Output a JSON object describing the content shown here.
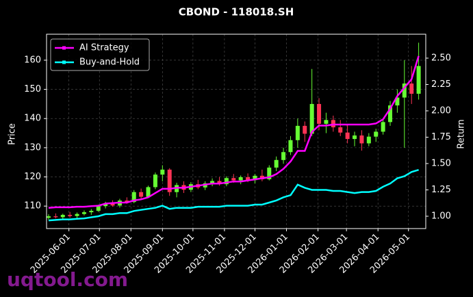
{
  "chart_data": {
    "type": "candlestick",
    "title": "CBOND - 118018.SH",
    "ylabel": "Price",
    "y2label": "Return",
    "x": [
      "2025-05-12",
      "2025-05-19",
      "2025-05-26",
      "2025-06-02",
      "2025-06-09",
      "2025-06-16",
      "2025-06-23",
      "2025-06-30",
      "2025-07-07",
      "2025-07-14",
      "2025-07-21",
      "2025-07-28",
      "2025-08-04",
      "2025-08-11",
      "2025-08-18",
      "2025-08-25",
      "2025-09-01",
      "2025-09-08",
      "2025-09-15",
      "2025-09-22",
      "2025-09-29",
      "2025-10-06",
      "2025-10-13",
      "2025-10-20",
      "2025-10-27",
      "2025-11-03",
      "2025-11-10",
      "2025-11-17",
      "2025-11-24",
      "2025-12-01",
      "2025-12-08",
      "2025-12-15",
      "2025-12-22",
      "2025-12-29",
      "2026-01-05",
      "2026-01-12",
      "2026-01-19",
      "2026-01-26",
      "2026-02-02",
      "2026-02-09",
      "2026-02-16",
      "2026-02-23",
      "2026-03-02",
      "2026-03-09",
      "2026-03-16",
      "2026-03-23",
      "2026-03-30",
      "2026-04-06",
      "2026-04-13",
      "2026-04-20",
      "2026-04-27",
      "2026-05-04",
      "2026-05-11"
    ],
    "open": [
      106.0,
      106.5,
      106.2,
      107.0,
      106.6,
      107.3,
      107.9,
      108.4,
      110.0,
      110.8,
      110.2,
      111.9,
      111.4,
      114.8,
      113.2,
      116.5,
      120.8,
      122.5,
      114.8,
      117.2,
      115.6,
      117.5,
      116.4,
      117.8,
      118.6,
      117.5,
      119.6,
      118.8,
      119.9,
      118.9,
      120.4,
      119.2,
      123.2,
      125.8,
      128.5,
      132.6,
      137.5,
      134.8,
      145.0,
      138.2,
      139.5,
      137.0,
      135.2,
      133.0,
      134.2,
      131.5,
      133.8,
      135.5,
      138.8,
      144.5,
      147.2,
      152.0,
      148.5
    ],
    "high": [
      107.2,
      107.5,
      107.4,
      108.0,
      107.8,
      108.5,
      109.0,
      110.5,
      111.5,
      112.0,
      112.5,
      113.0,
      115.5,
      116.0,
      117.0,
      121.5,
      124.0,
      123.0,
      118.0,
      118.5,
      118.2,
      119.0,
      118.5,
      119.5,
      120.0,
      120.2,
      121.0,
      120.5,
      121.2,
      121.0,
      122.5,
      124.0,
      127.0,
      130.0,
      134.0,
      140.0,
      139.0,
      157.0,
      147.0,
      142.0,
      141.0,
      139.5,
      138.0,
      135.5,
      136.0,
      135.0,
      136.5,
      140.0,
      146.0,
      150.0,
      160.0,
      158.0,
      166.0
    ],
    "low": [
      105.4,
      105.8,
      105.6,
      106.0,
      105.9,
      106.8,
      107.0,
      108.0,
      109.2,
      109.8,
      109.5,
      110.8,
      111.0,
      112.5,
      112.8,
      115.8,
      118.5,
      113.5,
      113.0,
      114.5,
      114.8,
      115.8,
      115.5,
      116.8,
      117.0,
      116.8,
      118.0,
      117.5,
      118.2,
      117.8,
      118.5,
      118.8,
      122.0,
      124.5,
      127.5,
      130.0,
      132.0,
      134.0,
      136.0,
      135.0,
      135.5,
      134.0,
      131.5,
      130.5,
      129.0,
      130.5,
      132.0,
      134.5,
      137.5,
      142.0,
      130.0,
      145.0,
      146.5
    ],
    "close": [
      106.5,
      106.2,
      107.0,
      106.6,
      107.3,
      107.9,
      108.4,
      110.0,
      110.8,
      110.2,
      111.9,
      111.4,
      114.8,
      113.2,
      116.5,
      120.8,
      122.5,
      114.8,
      117.2,
      115.6,
      117.5,
      116.4,
      117.8,
      118.6,
      117.5,
      119.6,
      118.8,
      119.9,
      118.9,
      120.4,
      119.2,
      123.2,
      125.8,
      128.5,
      132.6,
      137.5,
      134.8,
      145.0,
      138.2,
      139.5,
      137.0,
      135.2,
      133.0,
      134.2,
      131.5,
      133.8,
      135.5,
      138.8,
      144.5,
      147.2,
      152.0,
      148.5,
      158.0
    ],
    "up_color": "#66ff33",
    "down_color": "#ff3355",
    "series": [
      {
        "name": "AI Strategy",
        "color": "#ff00ff",
        "axis": "y2",
        "values": [
          1.08,
          1.085,
          1.085,
          1.085,
          1.09,
          1.09,
          1.095,
          1.1,
          1.12,
          1.125,
          1.13,
          1.13,
          1.15,
          1.16,
          1.18,
          1.22,
          1.26,
          1.26,
          1.27,
          1.27,
          1.28,
          1.29,
          1.3,
          1.31,
          1.31,
          1.32,
          1.33,
          1.33,
          1.34,
          1.35,
          1.36,
          1.37,
          1.4,
          1.45,
          1.52,
          1.62,
          1.62,
          1.8,
          1.86,
          1.86,
          1.87,
          1.87,
          1.87,
          1.87,
          1.87,
          1.87,
          1.88,
          1.92,
          2.02,
          2.14,
          2.22,
          2.3,
          2.52
        ]
      },
      {
        "name": "Buy-and-Hold",
        "color": "#00ffff",
        "axis": "y2",
        "values": [
          0.96,
          0.965,
          0.97,
          0.97,
          0.975,
          0.98,
          0.99,
          1.0,
          1.02,
          1.02,
          1.03,
          1.03,
          1.05,
          1.06,
          1.07,
          1.08,
          1.1,
          1.07,
          1.08,
          1.08,
          1.08,
          1.09,
          1.09,
          1.09,
          1.09,
          1.1,
          1.1,
          1.1,
          1.1,
          1.11,
          1.11,
          1.13,
          1.15,
          1.18,
          1.2,
          1.3,
          1.27,
          1.25,
          1.25,
          1.25,
          1.24,
          1.24,
          1.23,
          1.22,
          1.23,
          1.23,
          1.24,
          1.28,
          1.31,
          1.36,
          1.38,
          1.42,
          1.44
        ]
      }
    ],
    "xlim": [
      "2025-05-10",
      "2026-05-18"
    ],
    "xticks": [
      "2025-06-01",
      "2025-07-01",
      "2025-08-01",
      "2025-09-01",
      "2025-10-01",
      "2025-11-01",
      "2025-12-01",
      "2026-01-01",
      "2026-02-01",
      "2026-03-01",
      "2026-04-01",
      "2026-05-01"
    ],
    "ylim": [
      102.3,
      168.9
    ],
    "yticks": [
      110,
      120,
      130,
      140,
      150,
      160
    ],
    "y2lim": [
      0.883,
      2.727
    ],
    "y2ticks": [
      {
        "value": 1,
        "label": "1.00"
      },
      1.25,
      {
        "value": 1.5,
        "label": "1.50"
      },
      1.75,
      {
        "value": 2,
        "label": "2.00"
      },
      2.25,
      {
        "value": 2.5,
        "label": "2.50"
      }
    ],
    "grid": true,
    "legend": "upper left"
  },
  "watermark": "uqtool.com"
}
